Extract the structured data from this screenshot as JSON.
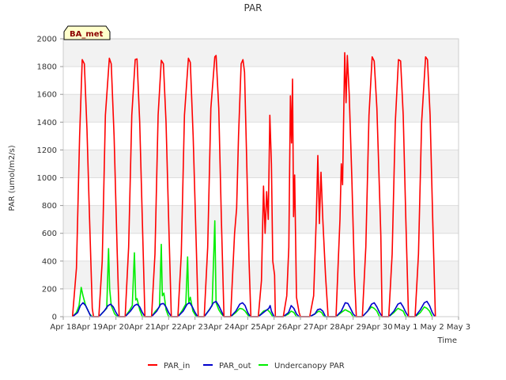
{
  "chart_data": {
    "type": "line",
    "title": "PAR",
    "xlabel": "Time",
    "ylabel": "PAR (umol/m2/s)",
    "badge": "BA_met",
    "ylim": [
      0,
      2000
    ],
    "xlim": [
      0,
      15
    ],
    "yticks": [
      0,
      200,
      400,
      600,
      800,
      1000,
      1200,
      1400,
      1600,
      1800,
      2000
    ],
    "xticks": [
      {
        "v": 0,
        "label": "Apr 18"
      },
      {
        "v": 1,
        "label": "Apr 19"
      },
      {
        "v": 2,
        "label": "Apr 20"
      },
      {
        "v": 3,
        "label": "Apr 21"
      },
      {
        "v": 4,
        "label": "Apr 22"
      },
      {
        "v": 5,
        "label": "Apr 23"
      },
      {
        "v": 6,
        "label": "Apr 24"
      },
      {
        "v": 7,
        "label": "Apr 25"
      },
      {
        "v": 8,
        "label": "Apr 26"
      },
      {
        "v": 9,
        "label": "Apr 27"
      },
      {
        "v": 10,
        "label": "Apr 28"
      },
      {
        "v": 11,
        "label": "Apr 29"
      },
      {
        "v": 12,
        "label": "Apr 30"
      },
      {
        "v": 13,
        "label": "May 1"
      },
      {
        "v": 14,
        "label": "May 2"
      },
      {
        "v": 15,
        "label": "May 3"
      }
    ],
    "grid": true,
    "legend_position": "bottom",
    "series": [
      {
        "name": "PAR_in",
        "color": "#ff0000",
        "points": [
          [
            0.35,
            0
          ],
          [
            0.5,
            350
          ],
          [
            0.62,
            1300
          ],
          [
            0.72,
            1850
          ],
          [
            0.8,
            1820
          ],
          [
            0.9,
            1350
          ],
          [
            1.0,
            700
          ],
          [
            1.1,
            60
          ],
          [
            1.15,
            0
          ],
          [
            1.35,
            0
          ],
          [
            1.48,
            400
          ],
          [
            1.6,
            1450
          ],
          [
            1.75,
            1860
          ],
          [
            1.82,
            1820
          ],
          [
            1.93,
            1300
          ],
          [
            2.05,
            450
          ],
          [
            2.12,
            0
          ],
          [
            2.35,
            0
          ],
          [
            2.48,
            500
          ],
          [
            2.6,
            1450
          ],
          [
            2.73,
            1850
          ],
          [
            2.8,
            1855
          ],
          [
            2.9,
            1400
          ],
          [
            3.0,
            700
          ],
          [
            3.1,
            0
          ],
          [
            3.35,
            0
          ],
          [
            3.48,
            450
          ],
          [
            3.6,
            1450
          ],
          [
            3.72,
            1845
          ],
          [
            3.8,
            1820
          ],
          [
            3.9,
            1400
          ],
          [
            4.0,
            700
          ],
          [
            4.1,
            0
          ],
          [
            4.35,
            0
          ],
          [
            4.48,
            450
          ],
          [
            4.6,
            1450
          ],
          [
            4.75,
            1860
          ],
          [
            4.82,
            1830
          ],
          [
            4.93,
            1300
          ],
          [
            5.05,
            500
          ],
          [
            5.12,
            0
          ],
          [
            5.35,
            0
          ],
          [
            5.48,
            500
          ],
          [
            5.6,
            1500
          ],
          [
            5.75,
            1870
          ],
          [
            5.8,
            1880
          ],
          [
            5.9,
            1500
          ],
          [
            6.0,
            700
          ],
          [
            6.1,
            0
          ],
          [
            6.35,
            0
          ],
          [
            6.5,
            600
          ],
          [
            6.58,
            780
          ],
          [
            6.65,
            1300
          ],
          [
            6.75,
            1820
          ],
          [
            6.82,
            1850
          ],
          [
            6.88,
            1760
          ],
          [
            6.95,
            1200
          ],
          [
            7.05,
            400
          ],
          [
            7.12,
            0
          ],
          [
            7.4,
            0
          ],
          [
            7.52,
            260
          ],
          [
            7.6,
            940
          ],
          [
            7.66,
            600
          ],
          [
            7.72,
            900
          ],
          [
            7.78,
            700
          ],
          [
            7.84,
            1450
          ],
          [
            7.9,
            1100
          ],
          [
            7.95,
            400
          ],
          [
            8.02,
            300
          ],
          [
            8.05,
            0
          ],
          [
            8.35,
            0
          ],
          [
            8.48,
            150
          ],
          [
            8.56,
            500
          ],
          [
            8.62,
            1590
          ],
          [
            8.66,
            1250
          ],
          [
            8.7,
            1710
          ],
          [
            8.74,
            720
          ],
          [
            8.78,
            1020
          ],
          [
            8.85,
            140
          ],
          [
            8.95,
            30
          ],
          [
            9.0,
            0
          ],
          [
            9.35,
            0
          ],
          [
            9.5,
            150
          ],
          [
            9.6,
            700
          ],
          [
            9.66,
            1160
          ],
          [
            9.72,
            670
          ],
          [
            9.78,
            1040
          ],
          [
            9.85,
            700
          ],
          [
            9.95,
            300
          ],
          [
            10.05,
            0
          ],
          [
            10.35,
            0
          ],
          [
            10.5,
            700
          ],
          [
            10.55,
            1100
          ],
          [
            10.6,
            950
          ],
          [
            10.68,
            1900
          ],
          [
            10.73,
            1540
          ],
          [
            10.78,
            1880
          ],
          [
            10.85,
            1600
          ],
          [
            10.95,
            1000
          ],
          [
            11.05,
            300
          ],
          [
            11.12,
            0
          ],
          [
            11.35,
            0
          ],
          [
            11.48,
            500
          ],
          [
            11.6,
            1450
          ],
          [
            11.72,
            1870
          ],
          [
            11.8,
            1840
          ],
          [
            11.9,
            1500
          ],
          [
            12.0,
            900
          ],
          [
            12.05,
            580
          ],
          [
            12.1,
            0
          ],
          [
            12.35,
            0
          ],
          [
            12.48,
            450
          ],
          [
            12.6,
            1400
          ],
          [
            12.72,
            1850
          ],
          [
            12.8,
            1840
          ],
          [
            12.9,
            1450
          ],
          [
            13.0,
            700
          ],
          [
            13.1,
            0
          ],
          [
            13.35,
            0
          ],
          [
            13.48,
            450
          ],
          [
            13.6,
            1400
          ],
          [
            13.75,
            1870
          ],
          [
            13.82,
            1850
          ],
          [
            13.92,
            1450
          ],
          [
            14.02,
            700
          ],
          [
            14.12,
            0
          ]
        ]
      },
      {
        "name": "PAR_out",
        "color": "#0000cc",
        "points": [
          [
            0.35,
            0
          ],
          [
            0.55,
            30
          ],
          [
            0.65,
            80
          ],
          [
            0.75,
            100
          ],
          [
            0.85,
            80
          ],
          [
            0.95,
            40
          ],
          [
            1.05,
            0
          ],
          [
            1.35,
            0
          ],
          [
            1.55,
            40
          ],
          [
            1.7,
            80
          ],
          [
            1.8,
            90
          ],
          [
            1.9,
            70
          ],
          [
            2.0,
            30
          ],
          [
            2.1,
            0
          ],
          [
            2.35,
            0
          ],
          [
            2.55,
            40
          ],
          [
            2.7,
            80
          ],
          [
            2.8,
            90
          ],
          [
            2.9,
            70
          ],
          [
            3.0,
            30
          ],
          [
            3.1,
            0
          ],
          [
            3.35,
            0
          ],
          [
            3.55,
            40
          ],
          [
            3.7,
            90
          ],
          [
            3.8,
            95
          ],
          [
            3.9,
            70
          ],
          [
            4.0,
            30
          ],
          [
            4.1,
            0
          ],
          [
            4.35,
            0
          ],
          [
            4.55,
            40
          ],
          [
            4.7,
            90
          ],
          [
            4.8,
            100
          ],
          [
            4.9,
            70
          ],
          [
            5.0,
            30
          ],
          [
            5.1,
            0
          ],
          [
            5.35,
            0
          ],
          [
            5.55,
            50
          ],
          [
            5.7,
            100
          ],
          [
            5.8,
            110
          ],
          [
            5.9,
            80
          ],
          [
            6.0,
            40
          ],
          [
            6.1,
            0
          ],
          [
            6.35,
            0
          ],
          [
            6.55,
            40
          ],
          [
            6.7,
            90
          ],
          [
            6.8,
            100
          ],
          [
            6.9,
            80
          ],
          [
            7.0,
            30
          ],
          [
            7.1,
            0
          ],
          [
            7.4,
            0
          ],
          [
            7.6,
            30
          ],
          [
            7.8,
            60
          ],
          [
            7.85,
            80
          ],
          [
            7.9,
            40
          ],
          [
            8.0,
            0
          ],
          [
            8.35,
            0
          ],
          [
            8.55,
            30
          ],
          [
            8.65,
            80
          ],
          [
            8.75,
            60
          ],
          [
            8.85,
            20
          ],
          [
            8.95,
            0
          ],
          [
            9.35,
            0
          ],
          [
            9.55,
            20
          ],
          [
            9.65,
            50
          ],
          [
            9.75,
            55
          ],
          [
            9.85,
            40
          ],
          [
            9.95,
            0
          ],
          [
            10.35,
            0
          ],
          [
            10.55,
            40
          ],
          [
            10.7,
            100
          ],
          [
            10.8,
            95
          ],
          [
            10.9,
            60
          ],
          [
            11.0,
            20
          ],
          [
            11.1,
            0
          ],
          [
            11.35,
            0
          ],
          [
            11.55,
            40
          ],
          [
            11.7,
            90
          ],
          [
            11.8,
            100
          ],
          [
            11.9,
            70
          ],
          [
            12.0,
            30
          ],
          [
            12.1,
            0
          ],
          [
            12.35,
            0
          ],
          [
            12.55,
            40
          ],
          [
            12.7,
            90
          ],
          [
            12.8,
            100
          ],
          [
            12.9,
            70
          ],
          [
            13.0,
            30
          ],
          [
            13.1,
            0
          ],
          [
            13.35,
            0
          ],
          [
            13.55,
            50
          ],
          [
            13.7,
            100
          ],
          [
            13.8,
            110
          ],
          [
            13.9,
            80
          ],
          [
            14.0,
            30
          ],
          [
            14.1,
            0
          ]
        ]
      },
      {
        "name": "Undercanopy PAR",
        "color": "#00ee00",
        "points": [
          [
            0.35,
            0
          ],
          [
            0.5,
            30
          ],
          [
            0.6,
            80
          ],
          [
            0.68,
            210
          ],
          [
            0.75,
            150
          ],
          [
            0.85,
            80
          ],
          [
            1.0,
            20
          ],
          [
            1.1,
            0
          ],
          [
            1.35,
            0
          ],
          [
            1.5,
            30
          ],
          [
            1.65,
            60
          ],
          [
            1.72,
            490
          ],
          [
            1.76,
            200
          ],
          [
            1.82,
            80
          ],
          [
            1.95,
            20
          ],
          [
            2.05,
            0
          ],
          [
            2.35,
            0
          ],
          [
            2.5,
            40
          ],
          [
            2.62,
            80
          ],
          [
            2.7,
            460
          ],
          [
            2.75,
            120
          ],
          [
            2.8,
            130
          ],
          [
            2.9,
            50
          ],
          [
            3.0,
            0
          ],
          [
            3.35,
            0
          ],
          [
            3.5,
            40
          ],
          [
            3.65,
            70
          ],
          [
            3.72,
            520
          ],
          [
            3.76,
            150
          ],
          [
            3.82,
            170
          ],
          [
            3.9,
            50
          ],
          [
            4.0,
            0
          ],
          [
            4.35,
            0
          ],
          [
            4.5,
            40
          ],
          [
            4.65,
            90
          ],
          [
            4.72,
            430
          ],
          [
            4.76,
            100
          ],
          [
            4.82,
            140
          ],
          [
            4.92,
            40
          ],
          [
            5.05,
            0
          ],
          [
            5.35,
            0
          ],
          [
            5.5,
            40
          ],
          [
            5.65,
            80
          ],
          [
            5.75,
            690
          ],
          [
            5.8,
            100
          ],
          [
            5.9,
            50
          ],
          [
            6.0,
            20
          ],
          [
            6.1,
            0
          ],
          [
            6.35,
            0
          ],
          [
            6.55,
            30
          ],
          [
            6.7,
            60
          ],
          [
            6.8,
            55
          ],
          [
            6.9,
            40
          ],
          [
            7.05,
            0
          ],
          [
            7.4,
            0
          ],
          [
            7.6,
            40
          ],
          [
            7.75,
            50
          ],
          [
            7.85,
            30
          ],
          [
            7.95,
            0
          ],
          [
            8.35,
            0
          ],
          [
            8.55,
            20
          ],
          [
            8.65,
            40
          ],
          [
            8.75,
            30
          ],
          [
            8.85,
            0
          ],
          [
            9.35,
            0
          ],
          [
            9.55,
            20
          ],
          [
            9.7,
            40
          ],
          [
            9.8,
            30
          ],
          [
            9.9,
            0
          ],
          [
            10.35,
            0
          ],
          [
            10.55,
            30
          ],
          [
            10.7,
            50
          ],
          [
            10.8,
            40
          ],
          [
            10.9,
            30
          ],
          [
            11.0,
            0
          ],
          [
            11.35,
            0
          ],
          [
            11.55,
            40
          ],
          [
            11.7,
            70
          ],
          [
            11.8,
            60
          ],
          [
            11.9,
            40
          ],
          [
            12.0,
            0
          ],
          [
            12.35,
            0
          ],
          [
            12.55,
            30
          ],
          [
            12.7,
            60
          ],
          [
            12.8,
            50
          ],
          [
            12.9,
            40
          ],
          [
            13.0,
            0
          ],
          [
            13.35,
            0
          ],
          [
            13.55,
            30
          ],
          [
            13.7,
            70
          ],
          [
            13.8,
            60
          ],
          [
            13.9,
            40
          ],
          [
            14.0,
            0
          ]
        ]
      }
    ]
  }
}
